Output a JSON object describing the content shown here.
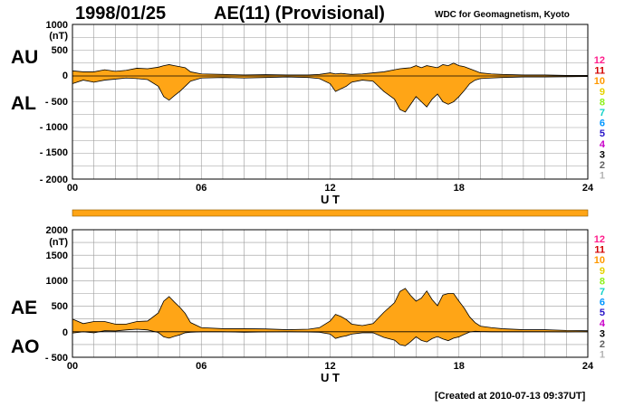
{
  "header": {
    "date": "1998/01/25",
    "index_title": "AE(11) (Provisional)",
    "organization": "WDC for Geomagnetism, Kyoto"
  },
  "footer": {
    "created": "[Created at 2010-07-13 09:37UT]"
  },
  "colors": {
    "fill": "#ffa516",
    "bar": "#ffa516",
    "grid": "#9a9a9a",
    "station_colors": [
      "#ff1e8c",
      "#d20000",
      "#ff9900",
      "#e6d200",
      "#8ef019",
      "#14d2c8",
      "#0096ff",
      "#2814c8",
      "#c800c8",
      "#000000",
      "#606060",
      "#b4b4b4"
    ]
  },
  "chart_data": [
    {
      "type": "area",
      "name": "AU/AL",
      "side_labels": {
        "upper": "AU",
        "lower": "AL"
      },
      "xlabel": "U T",
      "xlim": [
        0,
        24
      ],
      "x_tick_labels": [
        "00",
        "06",
        "12",
        "18",
        "24"
      ],
      "ylim": [
        -2000,
        1000
      ],
      "y_tick_labels": [
        "1000",
        "(nT)",
        "500",
        "0",
        "- 500",
        "- 1000",
        "- 1500",
        "- 2000"
      ],
      "station_labels": [
        "12",
        "11",
        "10",
        "9",
        "8",
        "7",
        "6",
        "5",
        "4",
        "3",
        "2",
        "1"
      ],
      "grid": true,
      "x": [
        0,
        0.5,
        1,
        1.5,
        2,
        2.5,
        3,
        3.5,
        4,
        4.25,
        4.5,
        4.75,
        5,
        5.25,
        5.5,
        6,
        7,
        8,
        9,
        10,
        11,
        11.5,
        12,
        12.25,
        12.5,
        12.75,
        13,
        13.5,
        14,
        14.5,
        15,
        15.25,
        15.5,
        15.75,
        16,
        16.25,
        16.5,
        16.75,
        17,
        17.25,
        17.5,
        17.75,
        18,
        18.25,
        18.5,
        18.75,
        19,
        19.5,
        20,
        21,
        22,
        23,
        24
      ],
      "series": [
        {
          "name": "AU",
          "values": [
            100,
            80,
            80,
            120,
            90,
            110,
            150,
            140,
            170,
            200,
            220,
            200,
            180,
            160,
            80,
            40,
            30,
            20,
            25,
            20,
            20,
            30,
            60,
            40,
            50,
            40,
            30,
            40,
            60,
            80,
            120,
            140,
            150,
            160,
            200,
            160,
            200,
            180,
            160,
            220,
            200,
            250,
            200,
            180,
            140,
            100,
            60,
            40,
            30,
            20,
            20,
            10,
            10
          ]
        },
        {
          "name": "AL",
          "values": [
            -150,
            -80,
            -120,
            -80,
            -60,
            -40,
            -50,
            -70,
            -200,
            -400,
            -470,
            -380,
            -300,
            -200,
            -100,
            -40,
            -30,
            -40,
            -30,
            -20,
            -30,
            -50,
            -150,
            -300,
            -250,
            -200,
            -120,
            -80,
            -100,
            -300,
            -450,
            -650,
            -700,
            -550,
            -400,
            -500,
            -600,
            -450,
            -350,
            -500,
            -550,
            -500,
            -400,
            -280,
            -150,
            -80,
            -50,
            -40,
            -30,
            -20,
            -20,
            -15,
            -10
          ]
        }
      ]
    },
    {
      "type": "area",
      "name": "AE/AO",
      "side_labels": {
        "upper": "AE",
        "lower": "AO"
      },
      "xlabel": "U T",
      "xlim": [
        0,
        24
      ],
      "x_tick_labels": [
        "00",
        "06",
        "12",
        "18",
        "24"
      ],
      "ylim": [
        -500,
        2000
      ],
      "y_tick_labels": [
        "2000",
        "(nT)",
        "1500",
        "1000",
        "500",
        "0",
        "- 500"
      ],
      "station_labels": [
        "12",
        "11",
        "10",
        "9",
        "8",
        "7",
        "6",
        "5",
        "4",
        "3",
        "2",
        "1"
      ],
      "grid": true,
      "x": [
        0,
        0.5,
        1,
        1.5,
        2,
        2.5,
        3,
        3.5,
        4,
        4.25,
        4.5,
        4.75,
        5,
        5.25,
        5.5,
        6,
        7,
        8,
        9,
        10,
        11,
        11.5,
        12,
        12.25,
        12.5,
        12.75,
        13,
        13.5,
        14,
        14.5,
        15,
        15.25,
        15.5,
        15.75,
        16,
        16.25,
        16.5,
        16.75,
        17,
        17.25,
        17.5,
        17.75,
        18,
        18.25,
        18.5,
        18.75,
        19,
        19.5,
        20,
        21,
        22,
        23,
        24
      ],
      "series": [
        {
          "name": "AE",
          "values": [
            250,
            160,
            200,
            200,
            150,
            150,
            200,
            210,
            370,
            600,
            690,
            580,
            480,
            360,
            180,
            80,
            60,
            60,
            55,
            40,
            50,
            80,
            210,
            340,
            300,
            240,
            150,
            120,
            160,
            380,
            570,
            790,
            850,
            710,
            600,
            660,
            800,
            630,
            510,
            720,
            750,
            750,
            600,
            460,
            290,
            180,
            110,
            80,
            60,
            40,
            40,
            25,
            20
          ]
        },
        {
          "name": "AO",
          "values": [
            -25,
            0,
            -20,
            20,
            15,
            35,
            50,
            35,
            -15,
            -100,
            -125,
            -90,
            -60,
            -20,
            -10,
            0,
            0,
            -10,
            -3,
            0,
            -5,
            -10,
            -45,
            -130,
            -100,
            -80,
            -45,
            -20,
            -20,
            -110,
            -165,
            -255,
            -275,
            -195,
            -100,
            -170,
            -200,
            -135,
            -95,
            -140,
            -175,
            -125,
            -100,
            -50,
            -5,
            10,
            5,
            0,
            0,
            0,
            0,
            -3,
            0
          ]
        }
      ]
    }
  ]
}
